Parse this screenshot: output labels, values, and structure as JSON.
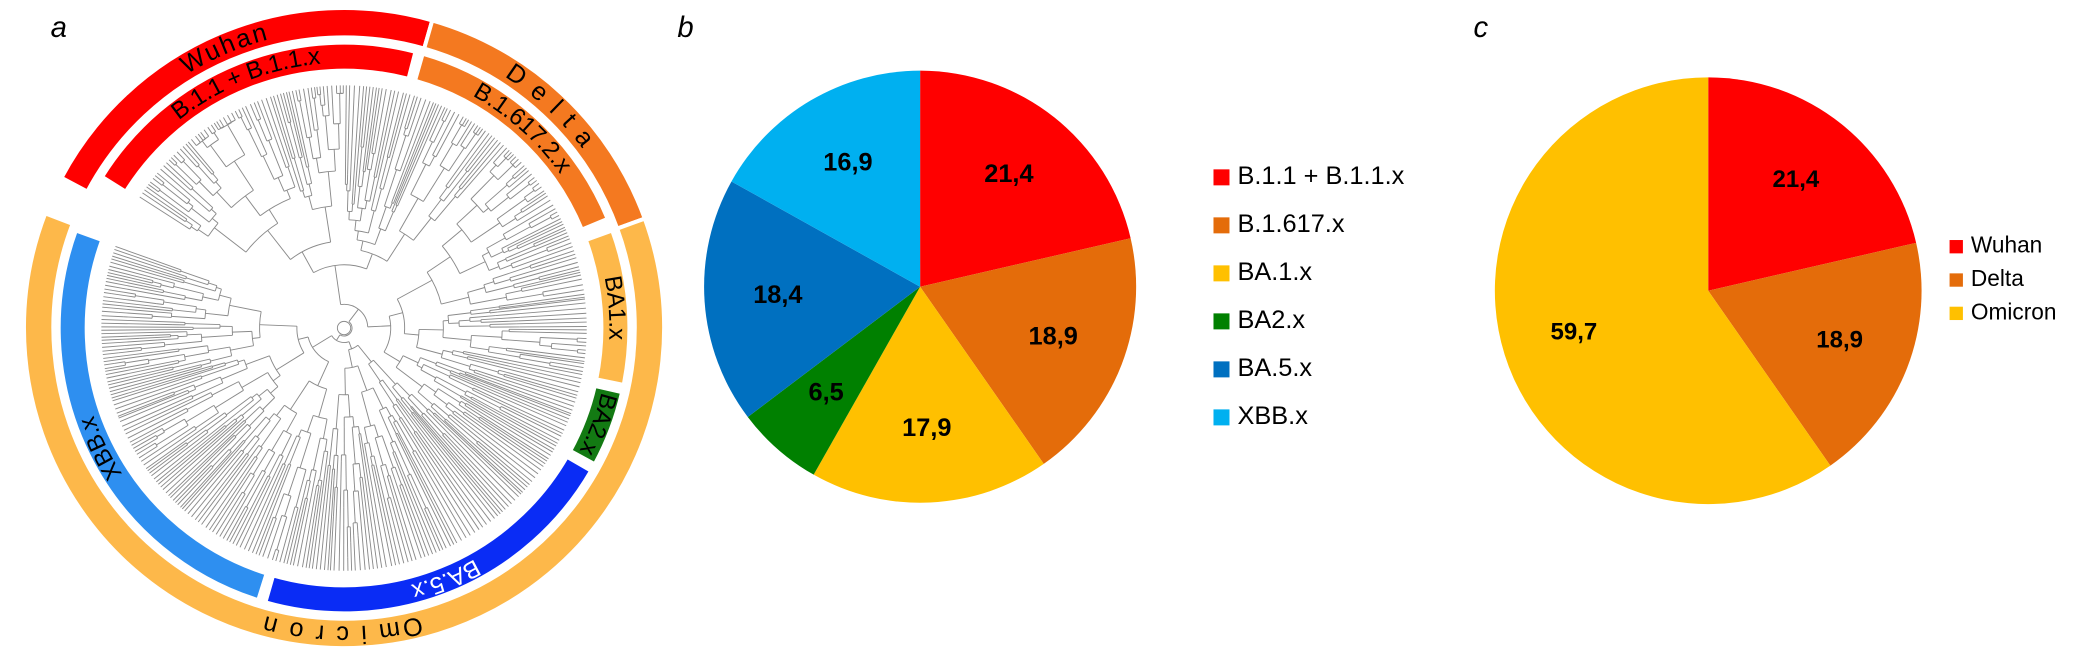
{
  "tree": {
    "label": "a",
    "outer_ring": [
      {
        "name": "Wuhan",
        "color": "#ff0000"
      },
      {
        "name": "D e l t a",
        "color": "#f47920"
      },
      {
        "name": "Om i c r o n",
        "color": "#fdb84a"
      }
    ],
    "inner_ring": [
      {
        "name": "B.1.1 + B.1.1.x",
        "color": "#ff0000"
      },
      {
        "name": "B.1.617.2.x",
        "color": "#f47920"
      },
      {
        "name": "BA1.x",
        "color": "#fdb84a"
      },
      {
        "name": "BA2.x",
        "color": "#137a13"
      },
      {
        "name": "BA.5.x",
        "color": "#0a2cf5"
      },
      {
        "name": "XBB.x",
        "color": "#2e8ff0"
      }
    ]
  },
  "chart_data": [
    {
      "type": "pie",
      "label": "b",
      "categories": [
        "B.1.1 + B.1.1.x",
        "B.1.617.x",
        "BA.1.x",
        "BA2.x",
        "BA.5.x",
        "XBB.x"
      ],
      "values": [
        21.4,
        18.9,
        17.9,
        6.5,
        18.4,
        16.9
      ],
      "value_labels": [
        "21,4",
        "18,9",
        "17,9",
        "6,5",
        "18,4",
        "16,9"
      ],
      "colors": [
        "#ff0000",
        "#e46c0a",
        "#ffc000",
        "#008000",
        "#0070c0",
        "#00b0f0"
      ],
      "legend": "right"
    },
    {
      "type": "pie",
      "label": "c",
      "categories": [
        "Wuhan",
        "Delta",
        "Omicron"
      ],
      "values": [
        21.4,
        18.9,
        59.7
      ],
      "value_labels": [
        "21,4",
        "18,9",
        "59,7"
      ],
      "colors": [
        "#ff0000",
        "#e46c0a",
        "#ffc000"
      ],
      "legend": "right"
    }
  ]
}
